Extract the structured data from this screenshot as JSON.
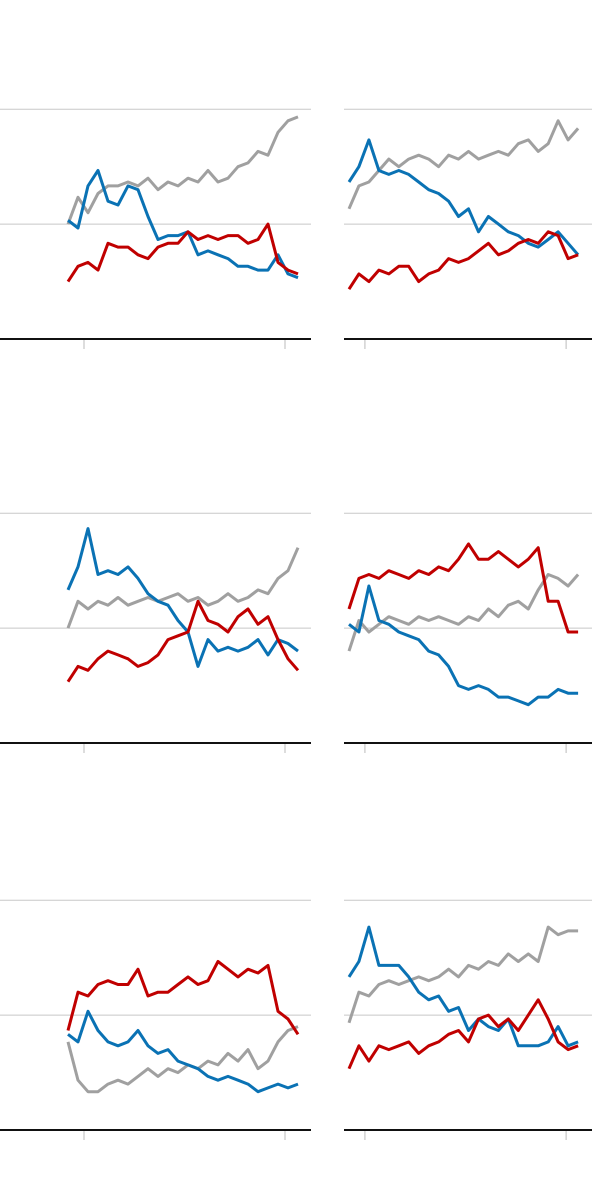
{
  "chart_data": [
    {
      "type": "line",
      "x": [
        0,
        1,
        2,
        3,
        4,
        5,
        6,
        7,
        8,
        9,
        10,
        11,
        12,
        13,
        14,
        15,
        16,
        17,
        18,
        19,
        20,
        21,
        22,
        23
      ],
      "xlim": [
        -6.8,
        24.3
      ],
      "xticks": [
        1.6,
        21.7
      ],
      "ylim": [
        0,
        70
      ],
      "yticks": [
        0,
        30,
        60
      ],
      "grid": true,
      "series": [
        {
          "color": "#a0a0a0",
          "values": [
            30,
            37,
            33,
            38,
            40,
            40,
            41,
            40,
            42,
            39,
            41,
            40,
            42,
            41,
            44,
            41,
            42,
            45,
            46,
            49,
            48,
            54,
            57,
            58
          ]
        },
        {
          "color": "#0a72b4",
          "values": [
            31,
            29,
            40,
            44,
            36,
            35,
            40,
            39,
            32,
            26,
            27,
            27,
            28,
            22,
            23,
            22,
            21,
            19,
            19,
            18,
            18,
            22,
            17,
            16
          ]
        },
        {
          "color": "#c00000",
          "values": [
            15,
            19,
            20,
            18,
            25,
            24,
            24,
            22,
            21,
            24,
            25,
            25,
            28,
            26,
            27,
            26,
            27,
            27,
            25,
            26,
            30,
            20,
            18,
            17
          ]
        }
      ]
    },
    {
      "type": "line",
      "x": [
        0,
        1,
        2,
        3,
        4,
        5,
        6,
        7,
        8,
        9,
        10,
        11,
        12,
        13,
        14,
        15,
        16,
        17,
        18,
        19,
        20,
        21,
        22,
        23
      ],
      "xlim": [
        -0.5,
        24.4
      ],
      "xticks": [
        1.6,
        21.8
      ],
      "ylim": [
        0,
        70
      ],
      "yticks": [
        0,
        30,
        60
      ],
      "grid": true,
      "series": [
        {
          "color": "#a0a0a0",
          "values": [
            34,
            40,
            41,
            44,
            47,
            45,
            47,
            48,
            47,
            45,
            48,
            47,
            49,
            47,
            48,
            49,
            48,
            51,
            52,
            49,
            51,
            57,
            52,
            55
          ]
        },
        {
          "color": "#0a72b4",
          "values": [
            41,
            45,
            52,
            44,
            43,
            44,
            43,
            41,
            39,
            38,
            36,
            32,
            34,
            28,
            32,
            30,
            28,
            27,
            25,
            24,
            26,
            28,
            25,
            22
          ]
        },
        {
          "color": "#c00000",
          "values": [
            13,
            17,
            15,
            18,
            17,
            19,
            19,
            15,
            17,
            18,
            21,
            20,
            21,
            23,
            25,
            22,
            23,
            25,
            26,
            25,
            28,
            27,
            21,
            22
          ]
        }
      ]
    },
    {
      "type": "line",
      "x": [
        0,
        1,
        2,
        3,
        4,
        5,
        6,
        7,
        8,
        9,
        10,
        11,
        12,
        13,
        14,
        15,
        16,
        17,
        18,
        19,
        20,
        21,
        22,
        23
      ],
      "xlim": [
        -6.8,
        24.3
      ],
      "xticks": [
        1.6,
        21.7
      ],
      "ylim": [
        0,
        70
      ],
      "yticks": [
        0,
        30,
        60
      ],
      "grid": true,
      "series": [
        {
          "color": "#a0a0a0",
          "values": [
            30,
            37,
            35,
            37,
            36,
            38,
            36,
            37,
            38,
            37,
            38,
            39,
            37,
            38,
            36,
            37,
            39,
            37,
            38,
            40,
            39,
            43,
            45,
            51
          ]
        },
        {
          "color": "#0a72b4",
          "values": [
            40,
            46,
            56,
            44,
            45,
            44,
            46,
            43,
            39,
            37,
            36,
            32,
            29,
            20,
            27,
            24,
            25,
            24,
            25,
            27,
            23,
            27,
            26,
            24
          ]
        },
        {
          "color": "#c00000",
          "values": [
            16,
            20,
            19,
            22,
            24,
            23,
            22,
            20,
            21,
            23,
            27,
            28,
            29,
            37,
            32,
            31,
            29,
            33,
            35,
            31,
            33,
            27,
            22,
            19
          ]
        }
      ]
    },
    {
      "type": "line",
      "x": [
        0,
        1,
        2,
        3,
        4,
        5,
        6,
        7,
        8,
        9,
        10,
        11,
        12,
        13,
        14,
        15,
        16,
        17,
        18,
        19,
        20,
        21,
        22,
        23
      ],
      "xlim": [
        -0.5,
        24.4
      ],
      "xticks": [
        1.6,
        21.8
      ],
      "ylim": [
        0,
        70
      ],
      "yticks": [
        0,
        30,
        60
      ],
      "grid": true,
      "series": [
        {
          "color": "#a0a0a0",
          "values": [
            24,
            32,
            29,
            31,
            33,
            32,
            31,
            33,
            32,
            33,
            32,
            31,
            33,
            32,
            35,
            33,
            36,
            37,
            35,
            40,
            44,
            43,
            41,
            44
          ]
        },
        {
          "color": "#0a72b4",
          "values": [
            31,
            29,
            41,
            32,
            31,
            29,
            28,
            27,
            24,
            23,
            20,
            15,
            14,
            15,
            14,
            12,
            12,
            11,
            10,
            12,
            12,
            14,
            13,
            13
          ]
        },
        {
          "color": "#c00000",
          "values": [
            35,
            43,
            44,
            43,
            45,
            44,
            43,
            45,
            44,
            46,
            45,
            48,
            52,
            48,
            48,
            50,
            48,
            46,
            48,
            51,
            37,
            37,
            29,
            29
          ]
        }
      ]
    },
    {
      "type": "line",
      "x": [
        0,
        1,
        2,
        3,
        4,
        5,
        6,
        7,
        8,
        9,
        10,
        11,
        12,
        13,
        14,
        15,
        16,
        17,
        18,
        19,
        20,
        21,
        22,
        23
      ],
      "xlim": [
        -6.8,
        24.3
      ],
      "xticks": [
        1.6,
        21.7
      ],
      "ylim": [
        0,
        70
      ],
      "yticks": [
        0,
        30,
        60
      ],
      "grid": true,
      "series": [
        {
          "color": "#a0a0a0",
          "values": [
            23,
            13,
            10,
            10,
            12,
            13,
            12,
            14,
            16,
            14,
            16,
            15,
            17,
            16,
            18,
            17,
            20,
            18,
            21,
            16,
            18,
            23,
            26,
            27
          ]
        },
        {
          "color": "#0a72b4",
          "values": [
            25,
            23,
            31,
            26,
            23,
            22,
            23,
            26,
            22,
            20,
            21,
            18,
            17,
            16,
            14,
            13,
            14,
            13,
            12,
            10,
            11,
            12,
            11,
            12
          ]
        },
        {
          "color": "#c00000",
          "values": [
            26,
            36,
            35,
            38,
            39,
            38,
            38,
            42,
            35,
            36,
            36,
            38,
            40,
            38,
            39,
            44,
            42,
            40,
            42,
            41,
            43,
            31,
            29,
            25
          ]
        }
      ]
    },
    {
      "type": "line",
      "x": [
        0,
        1,
        2,
        3,
        4,
        5,
        6,
        7,
        8,
        9,
        10,
        11,
        12,
        13,
        14,
        15,
        16,
        17,
        18,
        19,
        20,
        21,
        22,
        23
      ],
      "xlim": [
        -0.5,
        24.4
      ],
      "xticks": [
        1.6,
        21.8
      ],
      "ylim": [
        0,
        70
      ],
      "yticks": [
        0,
        30,
        60
      ],
      "grid": true,
      "series": [
        {
          "color": "#a0a0a0",
          "values": [
            28,
            36,
            35,
            38,
            39,
            38,
            39,
            40,
            39,
            40,
            42,
            40,
            43,
            42,
            44,
            43,
            46,
            44,
            46,
            44,
            53,
            51,
            52,
            52
          ]
        },
        {
          "color": "#0a72b4",
          "values": [
            40,
            44,
            53,
            43,
            43,
            43,
            40,
            36,
            34,
            35,
            31,
            32,
            26,
            29,
            27,
            26,
            29,
            22,
            22,
            22,
            23,
            27,
            22,
            23
          ]
        },
        {
          "color": "#c00000",
          "values": [
            16,
            22,
            18,
            22,
            21,
            22,
            23,
            20,
            22,
            23,
            25,
            26,
            23,
            29,
            30,
            27,
            29,
            26,
            30,
            34,
            29,
            23,
            21,
            22
          ]
        }
      ]
    }
  ]
}
